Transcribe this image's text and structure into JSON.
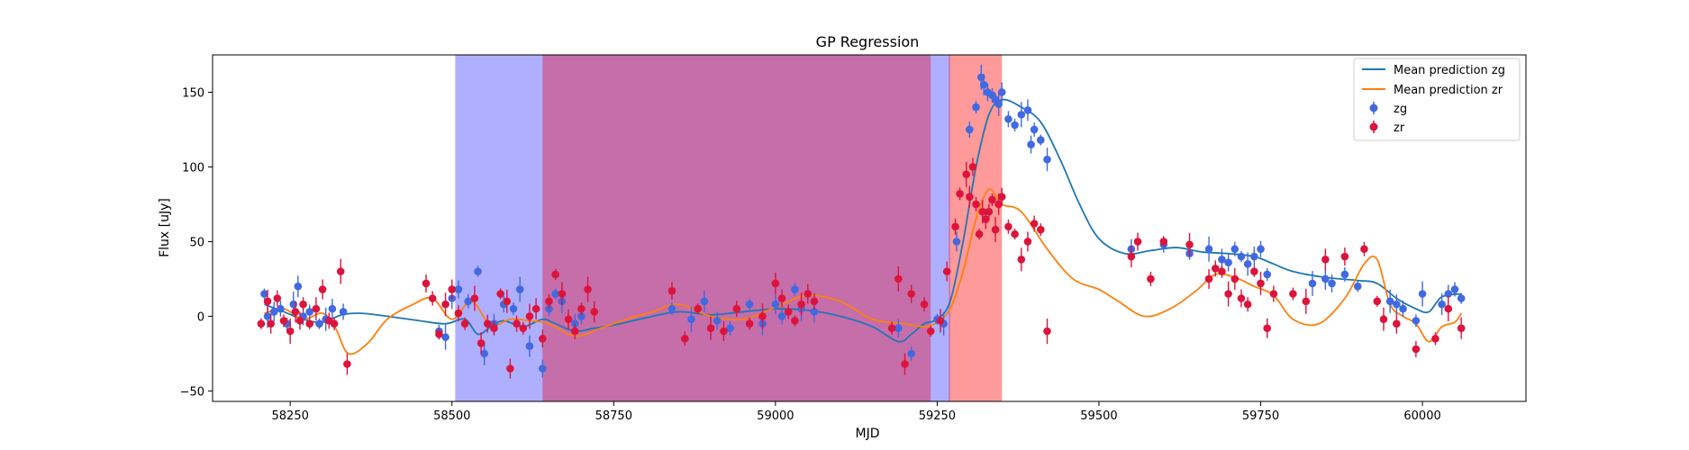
{
  "chart_data": {
    "type": "scatter",
    "title": "GP Regression",
    "xlabel": "MJD",
    "ylabel": "Flux [uJy]",
    "xlim": [
      58130,
      60160
    ],
    "ylim": [
      -57,
      175
    ],
    "xticks": [
      58250,
      58500,
      58750,
      59000,
      59250,
      59500,
      59750,
      60000
    ],
    "yticks": [
      -50,
      0,
      50,
      100,
      150
    ],
    "legend_placement": "top-right",
    "grid": false,
    "colors": {
      "zg_points": "#4169e1",
      "zr_points": "#dc143c",
      "zg_line": "#1f77b4",
      "zr_line": "#ff7f0e",
      "band_zg": "#a6a6ff",
      "band_zr": "#c66aa5",
      "band_zr_only": "#ff8f8f"
    },
    "bands": [
      {
        "filter": "zg",
        "x0": 58505,
        "x1": 59270
      },
      {
        "filter": "zr",
        "x0": 58640,
        "x1": 59240
      },
      {
        "filter": "zr",
        "x0": 59268,
        "x1": 59350
      }
    ],
    "series": [
      {
        "name": "Mean prediction zg",
        "kind": "line",
        "x": [
          58210,
          58240,
          58270,
          58300,
          58330,
          58360,
          58400,
          58450,
          58490,
          58520,
          58540,
          58560,
          58580,
          58610,
          58640,
          58660,
          58690,
          58720,
          58760,
          58800,
          58850,
          58900,
          58950,
          59000,
          59050,
          59100,
          59150,
          59190,
          59210,
          59230,
          59250,
          59270,
          59290,
          59310,
          59330,
          59350,
          59380,
          59410,
          59440,
          59470,
          59500,
          59540,
          59580,
          59620,
          59660,
          59700,
          59740,
          59770,
          59800,
          59850,
          59900,
          59930,
          59960,
          59990,
          60010,
          60030,
          60060
        ],
        "y": [
          8,
          3,
          -2,
          -4,
          1,
          2,
          0,
          -3,
          -5,
          -2,
          -12,
          -7,
          -3,
          -7,
          -2,
          -5,
          -10,
          -8,
          -5,
          -1,
          3,
          1,
          3,
          5,
          4,
          0,
          -7,
          -17,
          -12,
          -5,
          -2,
          10,
          50,
          100,
          135,
          145,
          140,
          130,
          105,
          75,
          52,
          42,
          44,
          46,
          43,
          42,
          40,
          35,
          30,
          26,
          24,
          22,
          12,
          5,
          3,
          13,
          15
        ]
      },
      {
        "name": "Mean prediction zr",
        "kind": "line",
        "x": [
          58210,
          58240,
          58270,
          58300,
          58320,
          58340,
          58370,
          58400,
          58440,
          58470,
          58500,
          58530,
          58560,
          58590,
          58620,
          58650,
          58680,
          58700,
          58730,
          58770,
          58810,
          58850,
          58900,
          58950,
          59000,
          59050,
          59100,
          59150,
          59200,
          59230,
          59250,
          59270,
          59290,
          59310,
          59330,
          59350,
          59380,
          59420,
          59460,
          59500,
          59530,
          59570,
          59610,
          59650,
          59680,
          59710,
          59740,
          59770,
          59800,
          59840,
          59880,
          59910,
          59930,
          59950,
          59970,
          59990,
          60010,
          60030,
          60050,
          60060
        ],
        "y": [
          2,
          5,
          -2,
          2,
          -8,
          -25,
          -18,
          -2,
          8,
          12,
          -2,
          10,
          -6,
          -2,
          -3,
          -5,
          -12,
          -13,
          -8,
          -2,
          3,
          8,
          0,
          -2,
          6,
          14,
          10,
          -2,
          -5,
          -7,
          -4,
          5,
          30,
          65,
          85,
          75,
          70,
          45,
          25,
          18,
          10,
          0,
          5,
          17,
          28,
          26,
          20,
          14,
          -2,
          -5,
          12,
          35,
          38,
          8,
          0,
          -5,
          -17,
          -7,
          -4,
          2
        ]
      },
      {
        "name": "zg",
        "kind": "points",
        "x": [
          58210,
          58215,
          58225,
          58235,
          58245,
          58255,
          58262,
          58270,
          58280,
          58295,
          58305,
          58315,
          58332,
          58480,
          58490,
          58500,
          58510,
          58525,
          58540,
          58550,
          58565,
          58580,
          58595,
          58605,
          58620,
          58640,
          58650,
          58660,
          58670,
          58690,
          58700,
          58840,
          58870,
          58890,
          58910,
          58930,
          58960,
          58980,
          59000,
          59010,
          59030,
          59040,
          59060,
          59190,
          59210,
          59250,
          59260,
          59280,
          59300,
          59310,
          59318,
          59322,
          59328,
          59335,
          59340,
          59345,
          59350,
          59360,
          59370,
          59380,
          59390,
          59395,
          59400,
          59410,
          59420,
          59550,
          59600,
          59640,
          59670,
          59690,
          59700,
          59710,
          59720,
          59730,
          59740,
          59750,
          59760,
          59830,
          59850,
          59860,
          59880,
          59900,
          59950,
          59960,
          59970,
          59990,
          60000,
          60030,
          60040,
          60050,
          60060
        ],
        "y": [
          15,
          0,
          3,
          5,
          -5,
          8,
          20,
          0,
          3,
          -5,
          -2,
          5,
          3,
          -10,
          -14,
          12,
          18,
          10,
          30,
          -25,
          -5,
          8,
          5,
          18,
          -20,
          -35,
          5,
          15,
          10,
          -5,
          0,
          5,
          -2,
          10,
          -3,
          -8,
          8,
          -5,
          8,
          0,
          18,
          5,
          3,
          -8,
          -25,
          -2,
          -5,
          50,
          125,
          140,
          160,
          155,
          150,
          148,
          145,
          142,
          150,
          132,
          128,
          135,
          138,
          115,
          125,
          118,
          105,
          45,
          48,
          42,
          45,
          38,
          36,
          45,
          40,
          35,
          40,
          45,
          28,
          22,
          25,
          22,
          28,
          20,
          10,
          8,
          5,
          -3,
          15,
          8,
          15,
          18,
          12
        ]
      },
      {
        "name": "zr",
        "kind": "points",
        "x": [
          58205,
          58215,
          58220,
          58230,
          58240,
          58250,
          58258,
          58265,
          58270,
          58280,
          58290,
          58300,
          58310,
          58318,
          58328,
          58338,
          58460,
          58470,
          58480,
          58490,
          58500,
          58510,
          58520,
          58535,
          58545,
          58555,
          58565,
          58575,
          58585,
          58590,
          58600,
          58610,
          58620,
          58630,
          58640,
          58650,
          58660,
          58670,
          58680,
          58690,
          58700,
          58710,
          58720,
          58840,
          58860,
          58880,
          58900,
          58920,
          58940,
          58960,
          58980,
          59000,
          59010,
          59020,
          59030,
          59040,
          59050,
          59060,
          59180,
          59190,
          59200,
          59210,
          59230,
          59240,
          59255,
          59265,
          59278,
          59285,
          59295,
          59300,
          59305,
          59310,
          59315,
          59320,
          59325,
          59330,
          59335,
          59340,
          59345,
          59350,
          59360,
          59370,
          59380,
          59390,
          59400,
          59410,
          59420,
          59550,
          59560,
          59580,
          59600,
          59640,
          59670,
          59680,
          59690,
          59700,
          59710,
          59720,
          59730,
          59740,
          59750,
          59760,
          59770,
          59800,
          59820,
          59850,
          59880,
          59910,
          59930,
          59940,
          59960,
          59990,
          60020,
          60040,
          60060
        ],
        "y": [
          -5,
          10,
          -5,
          12,
          -3,
          -10,
          3,
          -3,
          8,
          -5,
          5,
          18,
          -3,
          -5,
          30,
          -32,
          22,
          12,
          -12,
          8,
          18,
          2,
          -5,
          12,
          -18,
          -5,
          -8,
          15,
          10,
          -35,
          -5,
          -8,
          0,
          5,
          -15,
          10,
          28,
          15,
          -2,
          -10,
          5,
          18,
          3,
          17,
          -15,
          5,
          -8,
          -10,
          5,
          -5,
          0,
          22,
          12,
          3,
          -3,
          8,
          15,
          10,
          -8,
          25,
          -32,
          15,
          8,
          -10,
          -3,
          30,
          60,
          82,
          95,
          80,
          100,
          75,
          55,
          70,
          65,
          70,
          78,
          58,
          75,
          80,
          60,
          55,
          38,
          50,
          62,
          58,
          -10,
          40,
          50,
          25,
          50,
          48,
          25,
          32,
          30,
          15,
          25,
          12,
          8,
          30,
          22,
          -8,
          15,
          15,
          10,
          38,
          40,
          45,
          10,
          -2,
          -5,
          -22,
          -15,
          5,
          -8
        ]
      }
    ]
  }
}
